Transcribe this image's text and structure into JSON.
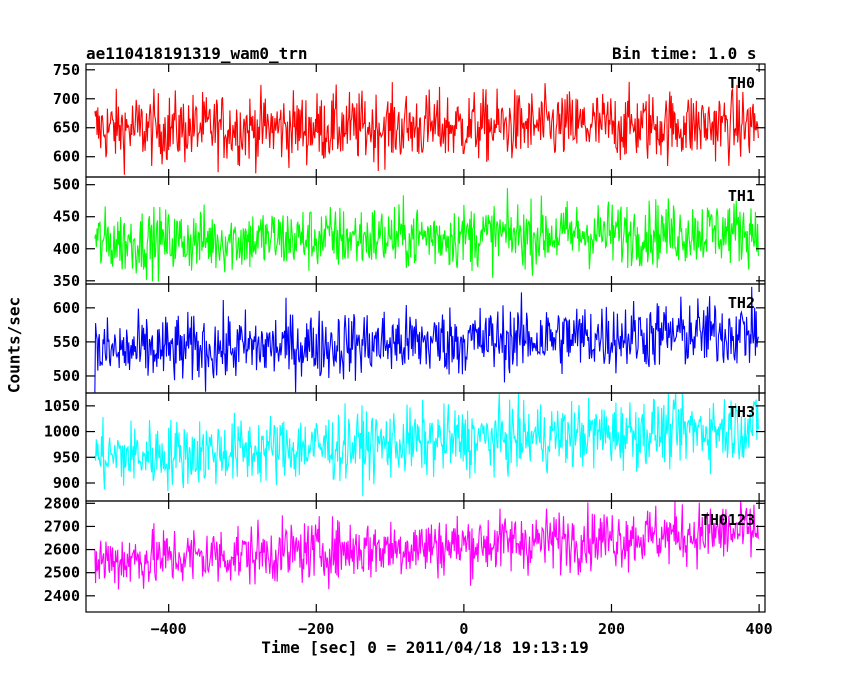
{
  "header": {
    "title": "ae110418191319_wam0_trn",
    "bin_time": "Bin time: 1.0 s"
  },
  "chart_data": {
    "type": "line",
    "xlabel": "Time [sec] 0 = 2011/04/18 19:13:19",
    "ylabel": "Counts/sec",
    "xlim": [
      -512,
      408
    ],
    "xticks": [
      -400,
      -200,
      0,
      200,
      400
    ],
    "xtick_labels": [
      "−400",
      "−200",
      "0",
      "200",
      "400"
    ],
    "x_start": -500,
    "x_end": 399,
    "x_step": 1,
    "panels": [
      {
        "name": "TH0",
        "color": "#ff0000",
        "ylim": [
          565,
          760
        ],
        "yticks": [
          600,
          650,
          700,
          750
        ],
        "mean_start": 648,
        "mean_end": 655,
        "noise": 30
      },
      {
        "name": "TH1",
        "color": "#00ff00",
        "ylim": [
          345,
          512
        ],
        "yticks": [
          350,
          400,
          450,
          500
        ],
        "mean_start": 410,
        "mean_end": 428,
        "noise": 25
      },
      {
        "name": "TH2",
        "color": "#0000ff",
        "ylim": [
          475,
          635
        ],
        "yticks": [
          500,
          550,
          600
        ],
        "mean_start": 535,
        "mean_end": 565,
        "noise": 25
      },
      {
        "name": "TH3",
        "color": "#00ffff",
        "ylim": [
          865,
          1075
        ],
        "yticks": [
          900,
          950,
          1000,
          1050
        ],
        "mean_start": 950,
        "mean_end": 1010,
        "noise": 33
      },
      {
        "name": "TH0123",
        "color": "#ff00ff",
        "ylim": [
          2330,
          2810
        ],
        "yticks": [
          2400,
          2500,
          2600,
          2700,
          2800
        ],
        "mean_start": 2550,
        "mean_end": 2680,
        "noise": 65
      }
    ]
  }
}
